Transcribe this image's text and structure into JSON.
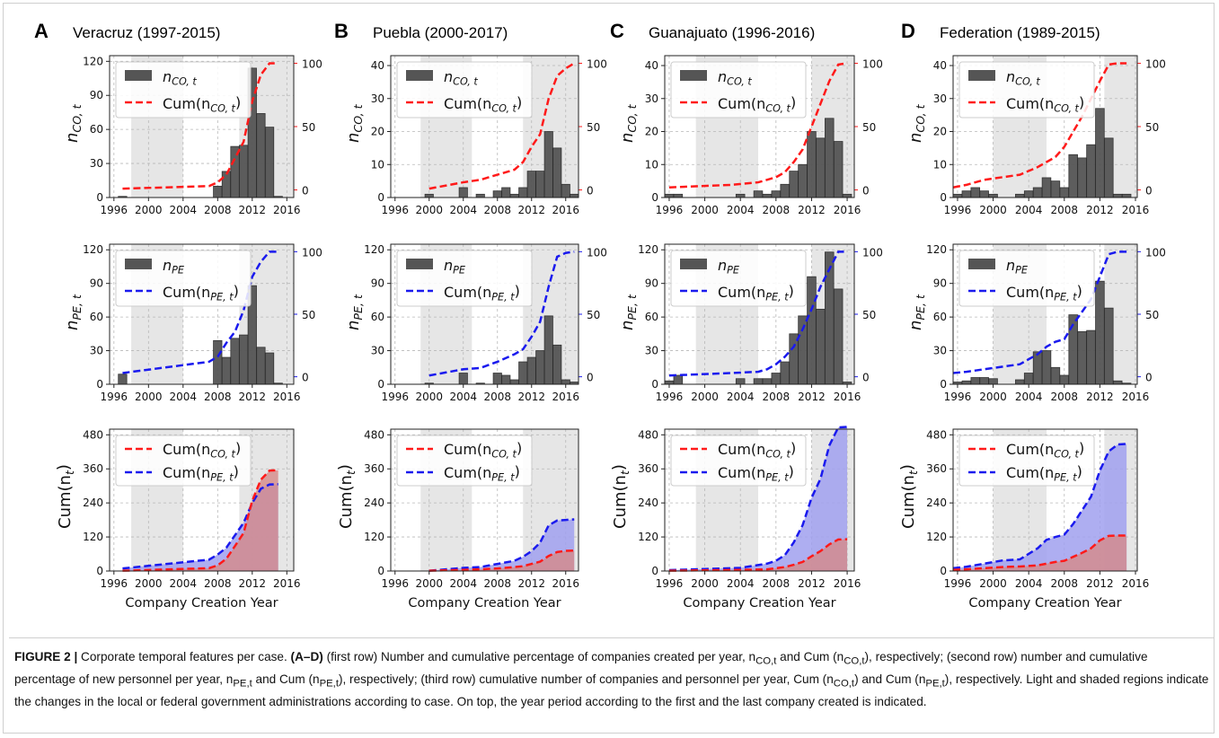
{
  "figure": {
    "caption_label": "FIGURE 2 |",
    "caption_part1": " Corporate temporal features per case. ",
    "caption_bold": "(A–D)",
    "caption_part2": " (first row) Number and cumulative percentage of companies created per year, n",
    "caption_sub1": "CO,t",
    "caption_part3": " and Cum (n",
    "caption_sub2": "CO,t",
    "caption_part4": "), respectively; (second row) number and cumulative percentage of new personnel per year, n",
    "caption_sub3": "PE,t",
    "caption_part5": " and Cum (n",
    "caption_sub4": "PE,t",
    "caption_part6": "), respectively; (third row) cumulative number of companies and personnel per year, Cum (n",
    "caption_sub5": "CO,t",
    "caption_part7": ") and Cum (n",
    "caption_sub6": "PE,t",
    "caption_part8": "), respectively. Light and shaded regions indicate the changes in the local or federal government administrations according to case. On top, the year period according to the first and the last company created is indicated."
  },
  "colors": {
    "bar": "#555555",
    "bar_edge": "#2a2a2a",
    "co_line": "#ff1a1a",
    "pe_line": "#1a1aee",
    "co_fill": "#d68a88",
    "pe_fill": "#a0a0ee",
    "shade": "#e6e6e6",
    "grid": "#b8b8b8"
  },
  "labels": {
    "co_count": "n",
    "co_count_sub": "CO, t",
    "pe_count": "n",
    "pe_count_sub": "PE",
    "pe_axis_sub": "PE, t",
    "cum_co": "Cum(n",
    "cum_co_sub": "CO, t",
    "cum_pe": "Cum(n",
    "cum_pe_sub": "PE, t",
    "cum_axis": "Cum(n",
    "cum_axis_sub": "t",
    "xlabel": "Company Creation Year"
  },
  "chart_data": [
    {
      "panel": "A",
      "title": "Veracruz (1997-2015)",
      "xlim": [
        1995.5,
        2016.8
      ],
      "xticks": [
        1996,
        2000,
        2004,
        2008,
        2012,
        2016
      ],
      "shaded": [
        [
          1998,
          2004
        ],
        [
          2010.5,
          2016.8
        ]
      ],
      "co": {
        "type": "bar+line",
        "ylim": [
          0,
          125
        ],
        "yticks": [
          0,
          30,
          60,
          90,
          120
        ],
        "years": [
          1997,
          2008,
          2009,
          2010,
          2011,
          2012,
          2013,
          2014,
          2015
        ],
        "values": [
          1,
          10,
          23,
          45,
          46,
          114,
          74,
          62,
          1
        ],
        "cum_years": [
          1997,
          2007,
          2008,
          2009,
          2010,
          2011,
          2012,
          2013,
          2014,
          2015
        ],
        "cum_values": [
          1,
          3,
          6,
          12,
          25,
          38,
          70,
          91,
          100,
          100
        ]
      },
      "pe": {
        "type": "bar+line",
        "ylim": [
          0,
          125
        ],
        "yticks": [
          0,
          30,
          60,
          90,
          120
        ],
        "years": [
          1997,
          2008,
          2009,
          2010,
          2011,
          2012,
          2013,
          2014,
          2015
        ],
        "values": [
          9,
          39,
          24,
          41,
          44,
          88,
          33,
          28,
          1
        ],
        "cum_years": [
          1997,
          2007,
          2008,
          2009,
          2010,
          2011,
          2012,
          2013,
          2014,
          2015
        ],
        "cum_values": [
          3,
          12,
          16,
          27,
          36,
          53,
          80,
          92,
          100,
          100
        ]
      },
      "cum": {
        "type": "area",
        "ylim": [
          0,
          500
        ],
        "yticks": [
          0,
          120,
          240,
          360,
          480
        ],
        "years": [
          1997,
          2007,
          2008,
          2009,
          2010,
          2011,
          2012,
          2013,
          2014,
          2015
        ],
        "co_values": [
          1,
          10,
          20,
          43,
          88,
          134,
          248,
          322,
          354,
          355
        ],
        "pe_values": [
          9,
          40,
          58,
          82,
          126,
          170,
          240,
          290,
          305,
          306
        ]
      }
    },
    {
      "panel": "B",
      "title": "Puebla (2000-2017)",
      "xlim": [
        1995.5,
        2017.5
      ],
      "xticks": [
        1996,
        2000,
        2004,
        2008,
        2012,
        2016
      ],
      "shaded": [
        [
          1999,
          2005
        ],
        [
          2011,
          2017.5
        ]
      ],
      "co": {
        "type": "bar+line",
        "ylim": [
          0,
          43
        ],
        "yticks": [
          0,
          10,
          20,
          30,
          40
        ],
        "years": [
          2000,
          2004,
          2006,
          2008,
          2009,
          2010,
          2011,
          2012,
          2013,
          2014,
          2015,
          2016,
          2017
        ],
        "values": [
          1,
          3,
          1,
          2,
          3,
          1,
          3,
          8,
          8,
          20,
          15,
          4,
          1
        ],
        "cum_years": [
          2000,
          2004,
          2006,
          2008,
          2010,
          2011,
          2012,
          2013,
          2014,
          2015,
          2016,
          2017
        ],
        "cum_values": [
          1,
          6,
          8,
          12,
          16,
          22,
          34,
          44,
          72,
          90,
          96,
          100
        ]
      },
      "pe": {
        "type": "bar+line",
        "ylim": [
          0,
          125
        ],
        "yticks": [
          0,
          30,
          60,
          90,
          120
        ],
        "years": [
          2000,
          2004,
          2006,
          2008,
          2009,
          2010,
          2011,
          2012,
          2013,
          2014,
          2015,
          2016,
          2017
        ],
        "values": [
          1,
          10,
          1,
          10,
          8,
          4,
          20,
          24,
          30,
          61,
          35,
          4,
          2
        ],
        "cum_years": [
          2000,
          2004,
          2006,
          2008,
          2010,
          2011,
          2012,
          2013,
          2014,
          2015,
          2016,
          2017
        ],
        "cum_values": [
          1,
          6,
          7,
          12,
          18,
          22,
          32,
          44,
          72,
          96,
          99,
          100
        ]
      },
      "cum": {
        "type": "area",
        "ylim": [
          0,
          500
        ],
        "yticks": [
          0,
          120,
          240,
          360,
          480
        ],
        "years": [
          2000,
          2004,
          2006,
          2008,
          2010,
          2011,
          2012,
          2013,
          2014,
          2015,
          2016,
          2017
        ],
        "co_values": [
          1,
          4,
          6,
          9,
          14,
          17,
          25,
          33,
          53,
          67,
          71,
          72
        ],
        "pe_values": [
          1,
          11,
          14,
          25,
          36,
          50,
          70,
          100,
          161,
          178,
          180,
          182
        ]
      }
    },
    {
      "panel": "C",
      "title": "Guanajuato (1996-2016)",
      "xlim": [
        1995.5,
        2016.8
      ],
      "xticks": [
        1996,
        2000,
        2004,
        2008,
        2012,
        2016
      ],
      "shaded": [
        [
          1999,
          2006
        ],
        [
          2012,
          2016.8
        ]
      ],
      "co": {
        "type": "bar+line",
        "ylim": [
          0,
          43
        ],
        "yticks": [
          0,
          10,
          20,
          30,
          40
        ],
        "years": [
          1996,
          1997,
          2004,
          2006,
          2007,
          2008,
          2009,
          2010,
          2011,
          2012,
          2013,
          2014,
          2015,
          2016
        ],
        "values": [
          1,
          1,
          1,
          2,
          1,
          2,
          4,
          8,
          10,
          20,
          18,
          24,
          17,
          1
        ],
        "cum_years": [
          1996,
          2003,
          2006,
          2008,
          2009,
          2010,
          2011,
          2012,
          2013,
          2014,
          2015,
          2016
        ],
        "cum_values": [
          2,
          4,
          6,
          10,
          14,
          22,
          32,
          50,
          68,
          86,
          99,
          100
        ]
      },
      "pe": {
        "type": "bar+line",
        "ylim": [
          0,
          125
        ],
        "yticks": [
          0,
          30,
          60,
          90,
          120
        ],
        "years": [
          1996,
          1997,
          2004,
          2006,
          2007,
          2008,
          2009,
          2010,
          2011,
          2012,
          2013,
          2014,
          2015,
          2016
        ],
        "values": [
          3,
          8,
          5,
          5,
          5,
          10,
          20,
          45,
          61,
          96,
          67,
          118,
          85,
          2
        ],
        "cum_years": [
          1996,
          2003,
          2006,
          2007,
          2008,
          2009,
          2010,
          2011,
          2012,
          2013,
          2014,
          2015,
          2016
        ],
        "cum_values": [
          1,
          3,
          4,
          6,
          10,
          16,
          24,
          38,
          54,
          72,
          86,
          100,
          100
        ]
      },
      "cum": {
        "type": "area",
        "ylim": [
          0,
          500
        ],
        "yticks": [
          0,
          120,
          240,
          360,
          480
        ],
        "years": [
          1996,
          2004,
          2007,
          2008,
          2009,
          2010,
          2011,
          2012,
          2013,
          2014,
          2015,
          2016
        ],
        "co_values": [
          1,
          4,
          6,
          10,
          14,
          22,
          32,
          52,
          70,
          94,
          111,
          112
        ],
        "pe_values": [
          3,
          11,
          26,
          36,
          56,
          101,
          162,
          258,
          325,
          443,
          506,
          508
        ]
      }
    },
    {
      "panel": "D",
      "title": "Federation (1989-2015)",
      "xlim": [
        1995.5,
        2016.2
      ],
      "xticks": [
        1996,
        2000,
        2004,
        2008,
        2012,
        2016
      ],
      "shaded": [
        [
          2000,
          2006
        ],
        [
          2012.5,
          2016.2
        ]
      ],
      "co": {
        "type": "bar+line",
        "ylim": [
          0,
          43
        ],
        "yticks": [
          0,
          10,
          20,
          30,
          40
        ],
        "years": [
          1996,
          1997,
          1998,
          1999,
          2000,
          2003,
          2004,
          2005,
          2006,
          2007,
          2008,
          2009,
          2010,
          2011,
          2012,
          2013,
          2014,
          2015
        ],
        "values": [
          1,
          2,
          3,
          2,
          1,
          1,
          2,
          3,
          6,
          5,
          3,
          13,
          12,
          16,
          27,
          18,
          1,
          1
        ],
        "cum_years": [
          1995.5,
          1997,
          1999,
          2001,
          2003,
          2005,
          2006,
          2007,
          2008,
          2009,
          2010,
          2011,
          2012,
          2013,
          2014,
          2015
        ],
        "cum_values": [
          2,
          4,
          8,
          10,
          12,
          18,
          22,
          26,
          34,
          46,
          58,
          72,
          86,
          99,
          100,
          100
        ]
      },
      "pe": {
        "type": "bar+line",
        "ylim": [
          0,
          125
        ],
        "yticks": [
          0,
          30,
          60,
          90,
          120
        ],
        "years": [
          1996,
          1997,
          1998,
          1999,
          2000,
          2003,
          2004,
          2005,
          2006,
          2007,
          2008,
          2009,
          2010,
          2011,
          2012,
          2013,
          2014,
          2015
        ],
        "values": [
          2,
          3,
          6,
          6,
          5,
          4,
          10,
          29,
          30,
          15,
          8,
          62,
          47,
          48,
          92,
          68,
          3,
          1
        ],
        "cum_years": [
          1995.5,
          1997,
          1999,
          2001,
          2003,
          2005,
          2006,
          2007,
          2008,
          2009,
          2010,
          2011,
          2012,
          2013,
          2014,
          2015
        ],
        "cum_values": [
          3,
          4,
          6,
          8,
          10,
          18,
          24,
          28,
          30,
          42,
          52,
          62,
          80,
          98,
          100,
          100
        ]
      },
      "cum": {
        "type": "area",
        "ylim": [
          0,
          500
        ],
        "yticks": [
          0,
          120,
          240,
          360,
          480
        ],
        "years": [
          1995.5,
          1997,
          1999,
          2001,
          2003,
          2005,
          2006,
          2007,
          2008,
          2009,
          2010,
          2011,
          2012,
          2013,
          2014,
          2015
        ],
        "co_values": [
          4,
          6,
          10,
          14,
          16,
          20,
          26,
          32,
          36,
          50,
          64,
          80,
          108,
          124,
          125,
          125
        ],
        "pe_values": [
          10,
          15,
          26,
          37,
          41,
          80,
          110,
          120,
          128,
          166,
          214,
          262,
          354,
          422,
          446,
          448
        ]
      }
    }
  ]
}
